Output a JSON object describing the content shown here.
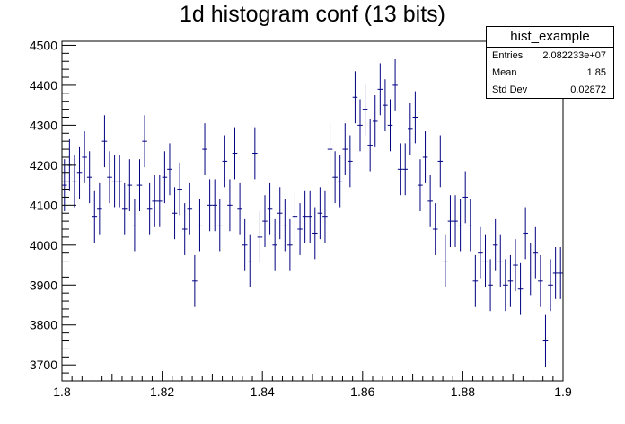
{
  "title": "1d histogram conf (13 bits)",
  "stats": {
    "name": "hist_example",
    "rows": [
      {
        "label": "Entries",
        "value": "2.082233e+07"
      },
      {
        "label": "Mean",
        "value": "1.85"
      },
      {
        "label": "Std Dev",
        "value": "0.02872"
      }
    ]
  },
  "colors": {
    "marker": "#000080",
    "axis": "#000000"
  },
  "chart_data": {
    "type": "scatter",
    "style": "histogram with error bars",
    "xlim": [
      1.8,
      1.9
    ],
    "ylim": [
      3660,
      4510
    ],
    "x_ticks": [
      "1.8",
      "1.82",
      "1.84",
      "1.86",
      "1.88",
      "1.9"
    ],
    "y_ticks": [
      "3700",
      "3800",
      "3900",
      "4000",
      "4100",
      "4200",
      "4300",
      "4400",
      "4500"
    ],
    "bin_width": 0.001,
    "values": [
      4150,
      4200,
      4160,
      4180,
      4220,
      4170,
      4070,
      4090,
      4260,
      4170,
      4160,
      4160,
      4090,
      4150,
      4050,
      4150,
      4260,
      4090,
      4110,
      4110,
      4170,
      4190,
      4080,
      4140,
      4040,
      4090,
      3910,
      4050,
      4240,
      4100,
      4100,
      4050,
      4210,
      4100,
      4230,
      4090,
      4000,
      3960,
      4230,
      4020,
      4060,
      4090,
      4000,
      4080,
      4050,
      4000,
      4070,
      4040,
      4070,
      4070,
      4030,
      4080,
      4070,
      4240,
      4170,
      4160,
      4240,
      4210,
      4370,
      4300,
      4340,
      4250,
      4310,
      4390,
      4350,
      4300,
      4400,
      4190,
      4190,
      4290,
      4320,
      4150,
      4220,
      4110,
      4040,
      4210,
      3960,
      4060,
      4060,
      4050,
      4120,
      4050,
      3910,
      3980,
      3960,
      3900,
      4000,
      3960,
      3900,
      3910,
      3950,
      3890,
      4030,
      3940,
      3980,
      3910,
      3760,
      3900,
      3930,
      3930
    ],
    "errors": [
      65,
      65,
      65,
      65,
      65,
      65,
      65,
      65,
      65,
      65,
      65,
      65,
      65,
      65,
      65,
      65,
      65,
      65,
      65,
      65,
      65,
      65,
      65,
      65,
      65,
      65,
      65,
      65,
      65,
      65,
      65,
      65,
      65,
      65,
      65,
      65,
      65,
      65,
      65,
      65,
      65,
      65,
      65,
      65,
      65,
      65,
      65,
      65,
      65,
      65,
      65,
      65,
      65,
      65,
      65,
      65,
      65,
      65,
      65,
      65,
      65,
      65,
      65,
      65,
      65,
      65,
      65,
      65,
      65,
      65,
      65,
      65,
      65,
      65,
      65,
      65,
      65,
      65,
      65,
      65,
      65,
      65,
      65,
      65,
      65,
      65,
      65,
      65,
      65,
      65,
      65,
      65,
      65,
      65,
      65,
      65,
      65,
      65,
      65,
      65
    ]
  }
}
